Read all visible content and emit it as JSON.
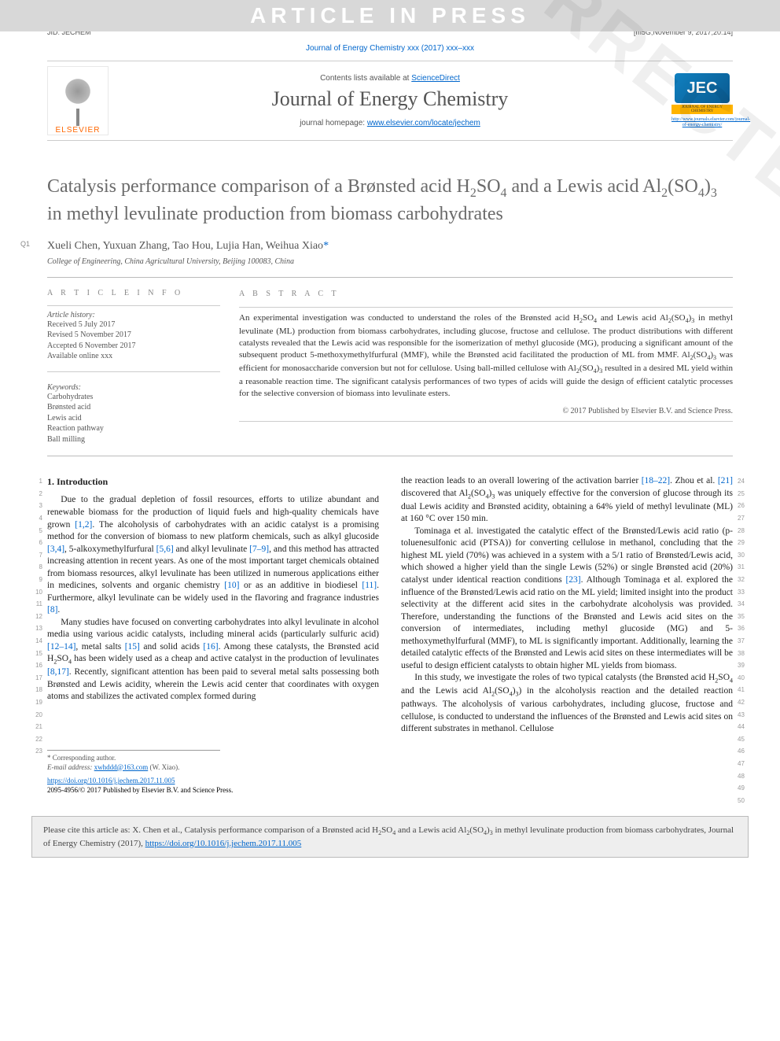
{
  "banner": "ARTICLE IN PRESS",
  "meta": {
    "jid": "JID: JECHEM",
    "stamp": "[m5G;November 9, 2017;20:14]"
  },
  "journal_ref": "Journal of Energy Chemistry xxx (2017) xxx–xxx",
  "contents_prefix": "Contents lists available at ",
  "contents_link": "ScienceDirect",
  "journal_name": "Journal of Energy Chemistry",
  "homepage_prefix": "journal homepage: ",
  "homepage_link": "www.elsevier.com/locate/jechem",
  "elsevier": "ELSEVIER",
  "jec_badge": "JEC",
  "jec_sub": "JOURNAL OF ENERGY CHEMISTRY",
  "jec_url": "http://www.journals.elsevier.com/journal-of-energy-chemistry/",
  "title_html": "Catalysis performance comparison of a Brønsted acid H<sub>2</sub>SO<sub>4</sub> and a Lewis acid Al<sub>2</sub>(SO<sub>4</sub>)<sub>3</sub> in methyl levulinate production from biomass carbohydrates",
  "q1": "Q1",
  "authors_html": "Xueli Chen, Yuxuan Zhang, Tao Hou, Lujia Han, Weihua Xiao<span class=\"corr-mark\">*</span>",
  "affiliation": "College of Engineering, China Agricultural University, Beijing 100083, China",
  "info_label": "A R T I C L E   I N F O",
  "abs_label": "A B S T R A C T",
  "history_label": "Article history:",
  "history": [
    "Received 5 July 2017",
    "Revised 5 November 2017",
    "Accepted 6 November 2017",
    "Available online xxx"
  ],
  "kw_label": "Keywords:",
  "keywords": [
    "Carbohydrates",
    "Brønsted acid",
    "Lewis acid",
    "Reaction pathway",
    "Ball milling"
  ],
  "abstract_html": "An experimental investigation was conducted to understand the roles of the Brønsted acid H<sub>2</sub>SO<sub>4</sub> and Lewis acid Al<sub>2</sub>(SO<sub>4</sub>)<sub>3</sub> in methyl levulinate (ML) production from biomass carbohydrates, including glucose, fructose and cellulose. The product distributions with different catalysts revealed that the Lewis acid was responsible for the isomerization of methyl glucoside (MG), producing a significant amount of the subsequent product 5-methoxymethylfurfural (MMF), while the Brønsted acid facilitated the production of ML from MMF. Al<sub>2</sub>(SO<sub>4</sub>)<sub>3</sub> was efficient for monosaccharide conversion but not for cellulose. Using ball-milled cellulose with Al<sub>2</sub>(SO<sub>4</sub>)<sub>3</sub> resulted in a desired ML yield within a reasonable reaction time. The significant catalysis performances of two types of acids will guide the design of efficient catalytic processes for the selective conversion of biomass into levulinate esters.",
  "copyright": "© 2017 Published by Elsevier B.V. and Science Press.",
  "intro_heading": "1. Introduction",
  "col1_p1_html": "Due to the gradual depletion of fossil resources, efforts to utilize abundant and renewable biomass for the production of liquid fuels and high-quality chemicals have grown <span class=\"cite\">[1,2]</span>. The alcoholysis of carbohydrates with an acidic catalyst is a promising method for the conversion of biomass to new platform chemicals, such as alkyl glucoside <span class=\"cite\">[3,4]</span>, 5-alkoxymethylfurfural <span class=\"cite\">[5,6]</span> and alkyl levulinate <span class=\"cite\">[7–9]</span>, and this method has attracted increasing attention in recent years. As one of the most important target chemicals obtained from biomass resources, alkyl levulinate has been utilized in numerous applications either in medicines, solvents and organic chemistry <span class=\"cite\">[10]</span> or as an additive in biodiesel <span class=\"cite\">[11]</span>. Furthermore, alkyl levulinate can be widely used in the flavoring and fragrance industries <span class=\"cite\">[8]</span>.",
  "col1_p2_html": "Many studies have focused on converting carbohydrates into alkyl levulinate in alcohol media using various acidic catalysts, including mineral acids (particularly sulfuric acid) <span class=\"cite\">[12–14]</span>, metal salts <span class=\"cite\">[15]</span> and solid acids <span class=\"cite\">[16]</span>. Among these catalysts, the Brønsted acid H<sub>2</sub>SO<sub>4</sub> has been widely used as a cheap and active catalyst in the production of levulinates <span class=\"cite\">[8,17]</span>. Recently, significant attention has been paid to several metal salts possessing both Brønsted and Lewis acidity, wherein the Lewis acid center that coordinates with oxygen atoms and stabilizes the activated complex formed during",
  "col2_p1_html": "the reaction leads to an overall lowering of the activation barrier <span class=\"cite\">[18–22]</span>. Zhou et al. <span class=\"cite\">[21]</span> discovered that Al<sub>2</sub>(SO<sub>4</sub>)<sub>3</sub> was uniquely effective for the conversion of glucose through its dual Lewis acidity and Brønsted acidity, obtaining a 64% yield of methyl levulinate (ML) at 160 °C over 150 min.",
  "col2_p2_html": "Tominaga et al. investigated the catalytic effect of the Brønsted/Lewis acid ratio (p-toluenesulfonic acid (PTSA)) for converting cellulose in methanol, concluding that the highest ML yield (70%) was achieved in a system with a 5/1 ratio of Brønsted/Lewis acid, which showed a higher yield than the single Lewis (52%) or single Brønsted acid (20%) catalyst under identical reaction conditions <span class=\"cite\">[23]</span>. Although Tominaga et al. explored the influence of the Brønsted/Lewis acid ratio on the ML yield; limited insight into the product selectivity at the different acid sites in the carbohydrate alcoholysis was provided. Therefore, understanding the functions of the Brønsted and Lewis acid sites on the conversion of intermediates, including methyl glucoside (MG) and 5-methoxymethylfurfural (MMF), to ML is significantly important. Additionally, learning the detailed catalytic effects of the Brønsted and Lewis acid sites on these intermediates will be useful to design efficient catalysts to obtain higher ML yields from biomass.",
  "col2_p3_html": "In this study, we investigate the roles of two typical catalysts (the Brønsted acid H<sub>2</sub>SO<sub>4</sub> and the Lewis acid Al<sub>2</sub>(SO<sub>4</sub>)<sub>3</sub>) in the alcoholysis reaction and the detailed reaction pathways. The alcoholysis of various carbohydrates, including glucose, fructose and cellulose, is conducted to understand the influences of the Brønsted and Lewis acid sites on different substrates in methanol. Cellulose",
  "left_line_numbers": [
    "1",
    "2",
    "3",
    "4",
    "5",
    "6",
    "7",
    "8",
    "9",
    "10",
    "11",
    "12",
    "13",
    "14",
    "15",
    "16",
    "17",
    "18",
    "19",
    "20",
    "21",
    "22",
    "23"
  ],
  "right_line_numbers": [
    "24",
    "25",
    "26",
    "27",
    "28",
    "29",
    "30",
    "31",
    "32",
    "33",
    "34",
    "35",
    "36",
    "37",
    "38",
    "39",
    "40",
    "41",
    "42",
    "43",
    "44",
    "45",
    "46",
    "47",
    "48",
    "49",
    "50"
  ],
  "footnote_corr": "* Corresponding author.",
  "footnote_email_label": "E-mail address: ",
  "footnote_email": "xwhddd@163.com",
  "footnote_email_tail": " (W. Xiao).",
  "doi_link": "https://doi.org/10.1016/j.jechem.2017.11.005",
  "issn_line": "2095-4956/© 2017 Published by Elsevier B.V. and Science Press.",
  "proof_wm": "UNCORRECTED PROOF",
  "cite_box_prefix": "Please cite this article as: X. Chen et al., Catalysis performance comparison of a Brønsted acid H",
  "cite_box_mid": "SO",
  "cite_box_mid2": " and a Lewis acid Al",
  "cite_box_mid3": "(SO",
  "cite_box_mid4": ")",
  "cite_box_tail": " in methyl levulinate production from biomass carbohydrates, Journal of Energy Chemistry (2017), ",
  "cite_box_link": "https://doi.org/10.1016/j.jechem.2017.11.005"
}
